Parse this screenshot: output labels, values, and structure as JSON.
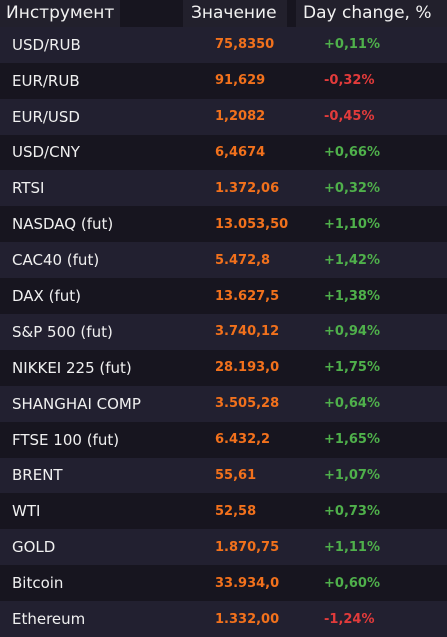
{
  "header": {
    "instrument": "Инструмент",
    "value": "Значение",
    "change": "Day change, %"
  },
  "colors": {
    "background": "#17151f",
    "row_alt": "#222030",
    "value": "#f2711c",
    "positive": "#4fb04b",
    "negative": "#e23b3b"
  },
  "rows": [
    {
      "name": "USD/RUB",
      "value": "75,8350",
      "change": "+0,11%",
      "direction": "up"
    },
    {
      "name": "EUR/RUB",
      "value": "91,629",
      "change": "-0,32%",
      "direction": "down"
    },
    {
      "name": "EUR/USD",
      "value": "1,2082",
      "change": "-0,45%",
      "direction": "down"
    },
    {
      "name": "USD/CNY",
      "value": "6,4674",
      "change": "+0,66%",
      "direction": "up"
    },
    {
      "name": "RTSI",
      "value": "1.372,06",
      "change": "+0,32%",
      "direction": "up"
    },
    {
      "name": "NASDAQ (fut)",
      "value": "13.053,50",
      "change": "+1,10%",
      "direction": "up"
    },
    {
      "name": "CAC40 (fut)",
      "value": "5.472,8",
      "change": "+1,42%",
      "direction": "up"
    },
    {
      "name": "DAX (fut)",
      "value": "13.627,5",
      "change": "+1,38%",
      "direction": "up"
    },
    {
      "name": "S&P 500 (fut)",
      "value": "3.740,12",
      "change": "+0,94%",
      "direction": "up"
    },
    {
      "name": "NIKKEI 225 (fut)",
      "value": "28.193,0",
      "change": "+1,75%",
      "direction": "up"
    },
    {
      "name": "SHANGHAI COMP",
      "value": "3.505,28",
      "change": "+0,64%",
      "direction": "up"
    },
    {
      "name": "FTSE 100 (fut)",
      "value": "6.432,2",
      "change": "+1,65%",
      "direction": "up"
    },
    {
      "name": "BRENT",
      "value": "55,61",
      "change": "+1,07%",
      "direction": "up"
    },
    {
      "name": "WTI",
      "value": "52,58",
      "change": "+0,73%",
      "direction": "up"
    },
    {
      "name": "GOLD",
      "value": "1.870,75",
      "change": "+1,11%",
      "direction": "up"
    },
    {
      "name": "Bitcoin",
      "value": "33.934,0",
      "change": "+0,60%",
      "direction": "up"
    },
    {
      "name": "Ethereum",
      "value": "1.332,00",
      "change": "-1,24%",
      "direction": "down"
    }
  ]
}
